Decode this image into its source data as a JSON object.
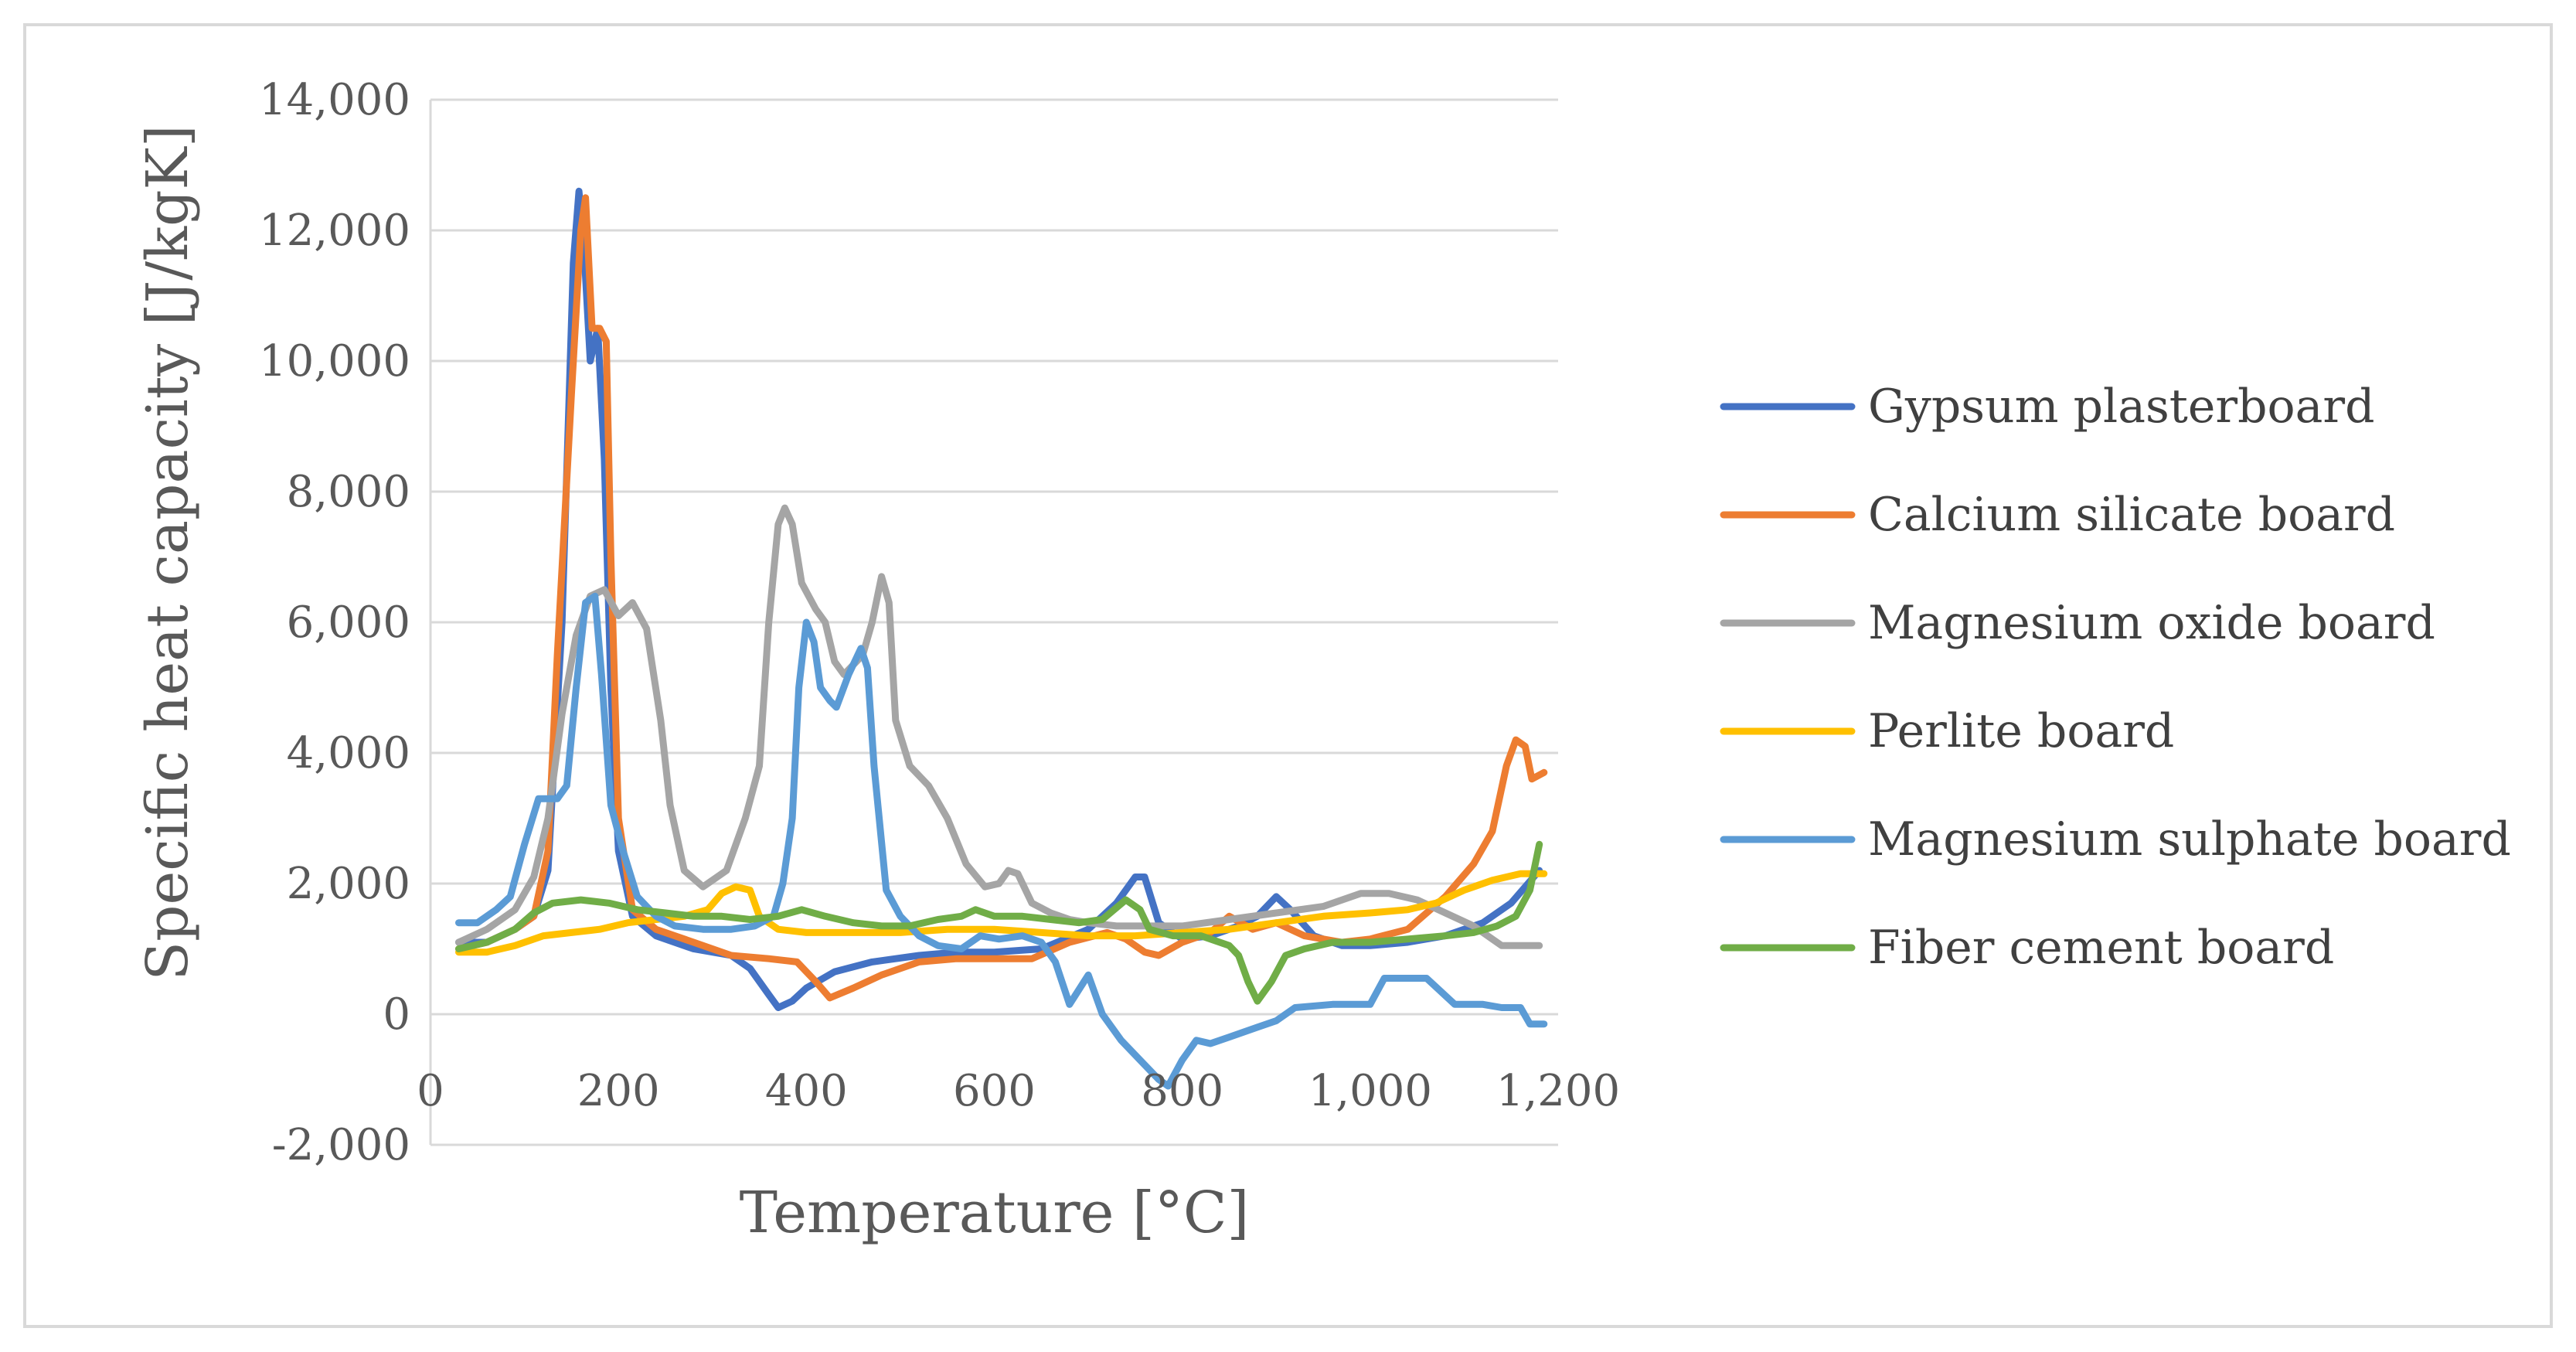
{
  "chart_data": {
    "type": "line",
    "title": "",
    "xlabel": "Temperature [°C]",
    "ylabel": "Specific heat capacity [J/kgK]",
    "xlim": [
      0,
      1200
    ],
    "ylim": [
      -2000,
      14000
    ],
    "xticks": [
      0,
      200,
      400,
      600,
      800,
      1000,
      1200
    ],
    "xtick_labels": [
      "0",
      "200",
      "400",
      "600",
      "800",
      "1,000",
      "1,200"
    ],
    "yticks": [
      -2000,
      0,
      2000,
      4000,
      6000,
      8000,
      10000,
      12000,
      14000
    ],
    "ytick_labels": [
      "-2,000",
      "0",
      "2,000",
      "4,000",
      "6,000",
      "8,000",
      "10,000",
      "12,000",
      "14,000"
    ],
    "grid": true,
    "legend_position": "right",
    "series": [
      {
        "name": "Gypsum plasterboard",
        "color": "#4472c4",
        "points": [
          [
            30,
            1100
          ],
          [
            60,
            1100
          ],
          [
            90,
            1300
          ],
          [
            110,
            1500
          ],
          [
            125,
            2200
          ],
          [
            140,
            6000
          ],
          [
            152,
            11500
          ],
          [
            158,
            12600
          ],
          [
            163,
            11800
          ],
          [
            170,
            10000
          ],
          [
            178,
            10500
          ],
          [
            185,
            8500
          ],
          [
            192,
            5000
          ],
          [
            200,
            2500
          ],
          [
            215,
            1500
          ],
          [
            240,
            1200
          ],
          [
            280,
            1000
          ],
          [
            320,
            900
          ],
          [
            340,
            700
          ],
          [
            360,
            300
          ],
          [
            370,
            100
          ],
          [
            385,
            200
          ],
          [
            400,
            400
          ],
          [
            430,
            650
          ],
          [
            470,
            800
          ],
          [
            520,
            900
          ],
          [
            560,
            950
          ],
          [
            600,
            950
          ],
          [
            650,
            1000
          ],
          [
            700,
            1300
          ],
          [
            730,
            1700
          ],
          [
            750,
            2100
          ],
          [
            760,
            2100
          ],
          [
            775,
            1400
          ],
          [
            800,
            1150
          ],
          [
            830,
            1200
          ],
          [
            860,
            1350
          ],
          [
            880,
            1500
          ],
          [
            900,
            1800
          ],
          [
            915,
            1600
          ],
          [
            940,
            1200
          ],
          [
            970,
            1050
          ],
          [
            1000,
            1050
          ],
          [
            1040,
            1100
          ],
          [
            1080,
            1200
          ],
          [
            1120,
            1400
          ],
          [
            1150,
            1700
          ],
          [
            1180,
            2200
          ]
        ]
      },
      {
        "name": "Calcium silicate board",
        "color": "#ed7d31",
        "points": [
          [
            30,
            1000
          ],
          [
            60,
            1100
          ],
          [
            90,
            1300
          ],
          [
            110,
            1500
          ],
          [
            125,
            2500
          ],
          [
            135,
            5500
          ],
          [
            150,
            9500
          ],
          [
            160,
            12000
          ],
          [
            165,
            12500
          ],
          [
            172,
            10500
          ],
          [
            180,
            10500
          ],
          [
            187,
            10300
          ],
          [
            192,
            7000
          ],
          [
            200,
            3000
          ],
          [
            215,
            1600
          ],
          [
            240,
            1300
          ],
          [
            280,
            1100
          ],
          [
            320,
            900
          ],
          [
            360,
            850
          ],
          [
            390,
            800
          ],
          [
            410,
            500
          ],
          [
            425,
            250
          ],
          [
            450,
            400
          ],
          [
            480,
            600
          ],
          [
            520,
            800
          ],
          [
            560,
            850
          ],
          [
            600,
            850
          ],
          [
            640,
            850
          ],
          [
            680,
            1100
          ],
          [
            720,
            1250
          ],
          [
            740,
            1150
          ],
          [
            760,
            950
          ],
          [
            775,
            900
          ],
          [
            800,
            1100
          ],
          [
            830,
            1250
          ],
          [
            850,
            1500
          ],
          [
            875,
            1300
          ],
          [
            900,
            1400
          ],
          [
            930,
            1200
          ],
          [
            970,
            1100
          ],
          [
            1000,
            1150
          ],
          [
            1040,
            1300
          ],
          [
            1080,
            1800
          ],
          [
            1110,
            2300
          ],
          [
            1130,
            2800
          ],
          [
            1145,
            3800
          ],
          [
            1155,
            4200
          ],
          [
            1165,
            4100
          ],
          [
            1172,
            3600
          ],
          [
            1185,
            3700
          ]
        ]
      },
      {
        "name": "Magnesium oxide board",
        "color": "#a5a5a5",
        "points": [
          [
            30,
            1100
          ],
          [
            60,
            1300
          ],
          [
            90,
            1600
          ],
          [
            110,
            2100
          ],
          [
            125,
            3000
          ],
          [
            140,
            4600
          ],
          [
            155,
            5800
          ],
          [
            170,
            6400
          ],
          [
            185,
            6500
          ],
          [
            200,
            6100
          ],
          [
            215,
            6300
          ],
          [
            230,
            5900
          ],
          [
            245,
            4500
          ],
          [
            255,
            3200
          ],
          [
            270,
            2200
          ],
          [
            290,
            1950
          ],
          [
            315,
            2200
          ],
          [
            335,
            3000
          ],
          [
            350,
            3800
          ],
          [
            360,
            6000
          ],
          [
            370,
            7500
          ],
          [
            377,
            7750
          ],
          [
            385,
            7500
          ],
          [
            395,
            6600
          ],
          [
            410,
            6200
          ],
          [
            420,
            6000
          ],
          [
            430,
            5400
          ],
          [
            440,
            5200
          ],
          [
            460,
            5500
          ],
          [
            470,
            6000
          ],
          [
            480,
            6700
          ],
          [
            488,
            6300
          ],
          [
            495,
            4500
          ],
          [
            510,
            3800
          ],
          [
            530,
            3500
          ],
          [
            550,
            3000
          ],
          [
            570,
            2300
          ],
          [
            590,
            1950
          ],
          [
            605,
            2000
          ],
          [
            615,
            2200
          ],
          [
            625,
            2150
          ],
          [
            640,
            1700
          ],
          [
            660,
            1550
          ],
          [
            680,
            1450
          ],
          [
            700,
            1400
          ],
          [
            730,
            1350
          ],
          [
            760,
            1350
          ],
          [
            800,
            1350
          ],
          [
            850,
            1450
          ],
          [
            900,
            1550
          ],
          [
            950,
            1650
          ],
          [
            990,
            1850
          ],
          [
            1020,
            1850
          ],
          [
            1050,
            1750
          ],
          [
            1080,
            1550
          ],
          [
            1110,
            1350
          ],
          [
            1140,
            1050
          ],
          [
            1180,
            1050
          ]
        ]
      },
      {
        "name": "Perlite board",
        "color": "#ffc000",
        "points": [
          [
            30,
            950
          ],
          [
            60,
            950
          ],
          [
            90,
            1050
          ],
          [
            120,
            1200
          ],
          [
            150,
            1250
          ],
          [
            180,
            1300
          ],
          [
            210,
            1400
          ],
          [
            240,
            1450
          ],
          [
            270,
            1500
          ],
          [
            295,
            1600
          ],
          [
            310,
            1850
          ],
          [
            325,
            1950
          ],
          [
            340,
            1900
          ],
          [
            350,
            1500
          ],
          [
            370,
            1300
          ],
          [
            400,
            1250
          ],
          [
            450,
            1250
          ],
          [
            500,
            1250
          ],
          [
            550,
            1300
          ],
          [
            600,
            1300
          ],
          [
            650,
            1250
          ],
          [
            700,
            1200
          ],
          [
            750,
            1200
          ],
          [
            800,
            1250
          ],
          [
            850,
            1300
          ],
          [
            900,
            1400
          ],
          [
            950,
            1500
          ],
          [
            1000,
            1550
          ],
          [
            1040,
            1600
          ],
          [
            1070,
            1700
          ],
          [
            1100,
            1900
          ],
          [
            1130,
            2050
          ],
          [
            1160,
            2150
          ],
          [
            1185,
            2150
          ]
        ]
      },
      {
        "name": "Magnesium sulphate board",
        "color": "#5b9bd5",
        "points": [
          [
            30,
            1400
          ],
          [
            50,
            1400
          ],
          [
            70,
            1600
          ],
          [
            85,
            1800
          ],
          [
            100,
            2600
          ],
          [
            115,
            3300
          ],
          [
            135,
            3300
          ],
          [
            145,
            3500
          ],
          [
            155,
            5000
          ],
          [
            165,
            6300
          ],
          [
            175,
            6400
          ],
          [
            182,
            5200
          ],
          [
            192,
            3200
          ],
          [
            205,
            2500
          ],
          [
            220,
            1800
          ],
          [
            240,
            1500
          ],
          [
            260,
            1350
          ],
          [
            290,
            1300
          ],
          [
            320,
            1300
          ],
          [
            345,
            1350
          ],
          [
            365,
            1500
          ],
          [
            375,
            2000
          ],
          [
            385,
            3000
          ],
          [
            392,
            5000
          ],
          [
            400,
            6000
          ],
          [
            408,
            5700
          ],
          [
            415,
            5000
          ],
          [
            425,
            4800
          ],
          [
            432,
            4700
          ],
          [
            445,
            5200
          ],
          [
            458,
            5600
          ],
          [
            465,
            5300
          ],
          [
            472,
            3800
          ],
          [
            485,
            1900
          ],
          [
            500,
            1500
          ],
          [
            520,
            1200
          ],
          [
            540,
            1050
          ],
          [
            565,
            1000
          ],
          [
            585,
            1200
          ],
          [
            605,
            1150
          ],
          [
            630,
            1200
          ],
          [
            650,
            1100
          ],
          [
            665,
            800
          ],
          [
            680,
            150
          ],
          [
            700,
            600
          ],
          [
            715,
            0
          ],
          [
            735,
            -400
          ],
          [
            755,
            -700
          ],
          [
            775,
            -1000
          ],
          [
            785,
            -1100
          ],
          [
            800,
            -700
          ],
          [
            815,
            -400
          ],
          [
            830,
            -450
          ],
          [
            850,
            -350
          ],
          [
            880,
            -200
          ],
          [
            900,
            -100
          ],
          [
            920,
            100
          ],
          [
            960,
            150
          ],
          [
            1000,
            150
          ],
          [
            1015,
            550
          ],
          [
            1060,
            550
          ],
          [
            1090,
            150
          ],
          [
            1120,
            150
          ],
          [
            1140,
            100
          ],
          [
            1160,
            100
          ],
          [
            1170,
            -150
          ],
          [
            1185,
            -150
          ]
        ]
      },
      {
        "name": "Fiber cement board",
        "color": "#70ad47",
        "points": [
          [
            30,
            1000
          ],
          [
            60,
            1100
          ],
          [
            90,
            1300
          ],
          [
            110,
            1550
          ],
          [
            130,
            1700
          ],
          [
            160,
            1750
          ],
          [
            190,
            1700
          ],
          [
            220,
            1600
          ],
          [
            250,
            1550
          ],
          [
            280,
            1500
          ],
          [
            310,
            1500
          ],
          [
            340,
            1450
          ],
          [
            370,
            1500
          ],
          [
            395,
            1600
          ],
          [
            420,
            1500
          ],
          [
            450,
            1400
          ],
          [
            480,
            1350
          ],
          [
            510,
            1350
          ],
          [
            540,
            1450
          ],
          [
            565,
            1500
          ],
          [
            580,
            1600
          ],
          [
            600,
            1500
          ],
          [
            630,
            1500
          ],
          [
            660,
            1450
          ],
          [
            690,
            1400
          ],
          [
            715,
            1450
          ],
          [
            740,
            1750
          ],
          [
            755,
            1600
          ],
          [
            765,
            1300
          ],
          [
            790,
            1200
          ],
          [
            820,
            1200
          ],
          [
            850,
            1050
          ],
          [
            860,
            900
          ],
          [
            870,
            500
          ],
          [
            880,
            200
          ],
          [
            895,
            500
          ],
          [
            910,
            900
          ],
          [
            930,
            1000
          ],
          [
            960,
            1100
          ],
          [
            1000,
            1100
          ],
          [
            1040,
            1150
          ],
          [
            1080,
            1200
          ],
          [
            1110,
            1250
          ],
          [
            1135,
            1350
          ],
          [
            1155,
            1500
          ],
          [
            1170,
            1900
          ],
          [
            1180,
            2600
          ]
        ]
      }
    ]
  }
}
